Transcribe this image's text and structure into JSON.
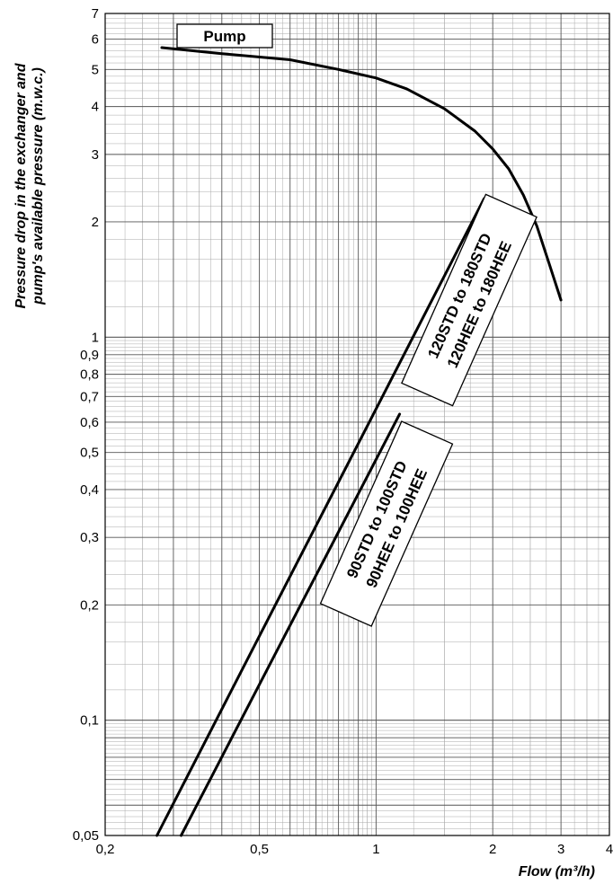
{
  "chart_data": {
    "type": "line",
    "title": "",
    "xlabel": "Flow (m³/h)",
    "ylabel_lines": [
      "Pressure drop in the exchanger and",
      "pump's available pressure (m.w.c.)"
    ],
    "x_scale": "log",
    "y_scale": "log",
    "xlim": [
      0.2,
      4
    ],
    "ylim": [
      0.05,
      7
    ],
    "grid": true,
    "x_ticks": [
      {
        "value": 0.2,
        "label": "0,2"
      },
      {
        "value": 0.5,
        "label": "0,5"
      },
      {
        "value": 1,
        "label": "1"
      },
      {
        "value": 2,
        "label": "2"
      },
      {
        "value": 3,
        "label": "3"
      },
      {
        "value": 4,
        "label": "4"
      }
    ],
    "y_ticks": [
      {
        "value": 0.05,
        "label": "0,05"
      },
      {
        "value": 0.1,
        "label": "0,1"
      },
      {
        "value": 0.2,
        "label": "0,2"
      },
      {
        "value": 0.3,
        "label": "0,3"
      },
      {
        "value": 0.4,
        "label": "0,4"
      },
      {
        "value": 0.5,
        "label": "0,5"
      },
      {
        "value": 0.6,
        "label": "0,6"
      },
      {
        "value": 0.7,
        "label": "0,7"
      },
      {
        "value": 0.8,
        "label": "0,8"
      },
      {
        "value": 0.9,
        "label": "0,9"
      },
      {
        "value": 1,
        "label": "1"
      },
      {
        "value": 2,
        "label": "2"
      },
      {
        "value": 3,
        "label": "3"
      },
      {
        "value": 4,
        "label": "4"
      },
      {
        "value": 5,
        "label": "5"
      },
      {
        "value": 6,
        "label": "6"
      },
      {
        "value": 7,
        "label": "7"
      }
    ],
    "series": [
      {
        "name": "Pump",
        "label_lines": [
          "Pump"
        ],
        "x": [
          0.28,
          0.4,
          0.6,
          0.8,
          1.0,
          1.2,
          1.5,
          1.8,
          2.0,
          2.2,
          2.4,
          2.6,
          2.8,
          3.0
        ],
        "y": [
          5.7,
          5.5,
          5.3,
          5.0,
          4.75,
          4.45,
          3.95,
          3.45,
          3.1,
          2.75,
          2.35,
          1.95,
          1.55,
          1.25
        ]
      },
      {
        "name": "120STD to 180STD / 120HEE to 180HEE",
        "label_lines": [
          "120STD to 180STD",
          "120HEE to 180HEE"
        ],
        "x": [
          0.272,
          1.9
        ],
        "y": [
          0.05,
          2.3
        ]
      },
      {
        "name": "90STD to 100STD / 90HEE to 100HEE",
        "label_lines": [
          "90STD to 100STD",
          "90HEE to 100HEE"
        ],
        "x": [
          0.314,
          1.15
        ],
        "y": [
          0.05,
          0.63
        ]
      }
    ]
  }
}
